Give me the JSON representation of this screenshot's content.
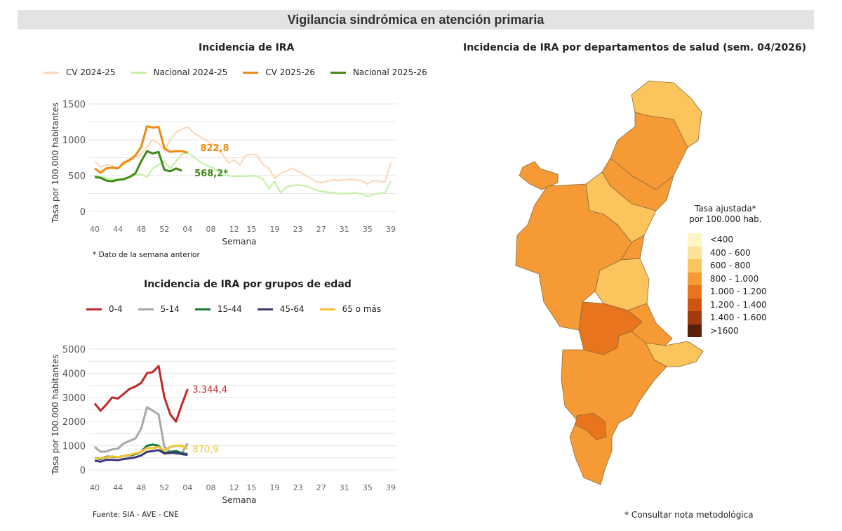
{
  "header": {
    "title": "Vigilancia sindrómica en atención primaria"
  },
  "weeks": [
    "40",
    "41",
    "42",
    "43",
    "44",
    "45",
    "46",
    "47",
    "48",
    "49",
    "50",
    "51",
    "52",
    "01",
    "02",
    "03",
    "04",
    "05",
    "06",
    "07",
    "08",
    "09",
    "10",
    "11",
    "12",
    "13",
    "14",
    "15",
    "16",
    "17",
    "18",
    "19",
    "20",
    "21",
    "22",
    "23",
    "24",
    "25",
    "26",
    "27",
    "28",
    "29",
    "30",
    "31",
    "32",
    "33",
    "34",
    "35",
    "36",
    "37",
    "38",
    "39"
  ],
  "chart_data": [
    {
      "type": "line",
      "title": "Incidencia de IRA",
      "xlabel": "Semana",
      "ylabel": "Tasa por 100.000 habitantes",
      "xticks": [
        "40",
        "44",
        "48",
        "52",
        "04",
        "08",
        "12",
        "15",
        "19",
        "23",
        "27",
        "31",
        "35",
        "39"
      ],
      "yticks": [
        0,
        500,
        1000,
        1500
      ],
      "ylim": [
        0,
        1500
      ],
      "grid": true,
      "legend_position": "top",
      "note": "* Dato de la semana anterior",
      "series": [
        {
          "name": "CV 2024-25",
          "color": "#fbd9bd",
          "values": [
            700,
            620,
            650,
            640,
            600,
            650,
            700,
            750,
            800,
            900,
            1000,
            950,
            850,
            1000,
            1100,
            1150,
            1180,
            1100,
            1050,
            1000,
            950,
            900,
            800,
            680,
            720,
            650,
            780,
            800,
            780,
            650,
            600,
            460,
            530,
            560,
            600,
            560,
            520,
            470,
            420,
            400,
            420,
            440,
            430,
            440,
            450,
            440,
            430,
            380,
            430,
            420,
            410,
            680
          ]
        },
        {
          "name": "Nacional 2024-25",
          "color": "#c6f0a8",
          "values": [
            500,
            490,
            460,
            450,
            440,
            460,
            480,
            510,
            520,
            480,
            600,
            650,
            700,
            600,
            700,
            800,
            820,
            770,
            700,
            650,
            620,
            580,
            510,
            500,
            490,
            490,
            490,
            500,
            490,
            450,
            320,
            420,
            260,
            340,
            360,
            370,
            360,
            340,
            300,
            280,
            270,
            260,
            250,
            250,
            250,
            260,
            240,
            210,
            240,
            250,
            260,
            420
          ]
        },
        {
          "name": "CV 2025-26",
          "color": "#ee8a12",
          "values": [
            600,
            540,
            600,
            610,
            600,
            680,
            720,
            780,
            900,
            1190,
            1170,
            1180,
            880,
            830,
            840,
            840,
            822.8
          ],
          "end_label": "822,8"
        },
        {
          "name": "Nacional 2025-26",
          "color": "#3f8a16",
          "values": [
            480,
            470,
            430,
            420,
            440,
            450,
            480,
            530,
            700,
            840,
            810,
            830,
            580,
            560,
            600,
            568.2
          ],
          "end_label": "568,2*"
        }
      ]
    },
    {
      "type": "line",
      "title": "Incidencia de IRA por grupos de edad",
      "xlabel": "Semana",
      "ylabel": "Tasa por 100.000 habitantes",
      "xticks": [
        "40",
        "44",
        "48",
        "52",
        "04",
        "08",
        "12",
        "15",
        "19",
        "23",
        "27",
        "31",
        "35",
        "39"
      ],
      "yticks": [
        0,
        1000,
        2000,
        3000,
        4000,
        5000
      ],
      "ylim": [
        0,
        5000
      ],
      "grid": true,
      "legend_position": "top",
      "note": "Fuente: SIA - AVE - CNE",
      "series": [
        {
          "name": "0-4",
          "color": "#c0282a",
          "values": [
            2750,
            2450,
            2700,
            3000,
            2950,
            3150,
            3350,
            3450,
            3600,
            4000,
            4050,
            4300,
            3000,
            2300,
            2000,
            2700,
            3344.4
          ],
          "end_label": "3.344,4"
        },
        {
          "name": "5-14",
          "color": "#a8a8a8",
          "values": [
            950,
            750,
            760,
            850,
            880,
            1100,
            1200,
            1300,
            1700,
            2600,
            2450,
            2300,
            950,
            750,
            650,
            700,
            1100
          ]
        },
        {
          "name": "15-44",
          "color": "#1a7a3a",
          "values": [
            500,
            450,
            550,
            550,
            520,
            580,
            600,
            650,
            750,
            1000,
            1050,
            1000,
            700,
            750,
            780,
            700,
            650
          ]
        },
        {
          "name": "45-64",
          "color": "#3b3675",
          "values": [
            380,
            340,
            420,
            420,
            400,
            450,
            480,
            520,
            600,
            750,
            780,
            820,
            680,
            700,
            720,
            650,
            620
          ]
        },
        {
          "name": "65 o más",
          "color": "#f2c230",
          "values": [
            500,
            480,
            520,
            560,
            520,
            580,
            620,
            680,
            750,
            900,
            900,
            950,
            800,
            950,
            1000,
            1000,
            870.9
          ],
          "end_label": "870,9"
        }
      ]
    }
  ],
  "map": {
    "title": "Incidencia de IRA por departamentos de salud (sem. 04/2026)",
    "legend_title_1": "Tasa ajustada*",
    "legend_title_2": "por 100.000 hab.",
    "legend": [
      {
        "label": "<400",
        "color": "#fff4c4"
      },
      {
        "label": "400 - 600",
        "color": "#fde29a"
      },
      {
        "label": "600 - 800",
        "color": "#fbc45c"
      },
      {
        "label": "800 - 1.000",
        "color": "#f59a35"
      },
      {
        "label": "1.000 - 1.200",
        "color": "#e8741e"
      },
      {
        "label": "1.200 - 1.400",
        "color": "#cf5410"
      },
      {
        "label": "1.400 - 1.600",
        "color": "#a33a0c"
      },
      {
        "label": ">1600",
        "color": "#5a2008"
      }
    ],
    "footnote": "* Consultar nota metodológica"
  }
}
